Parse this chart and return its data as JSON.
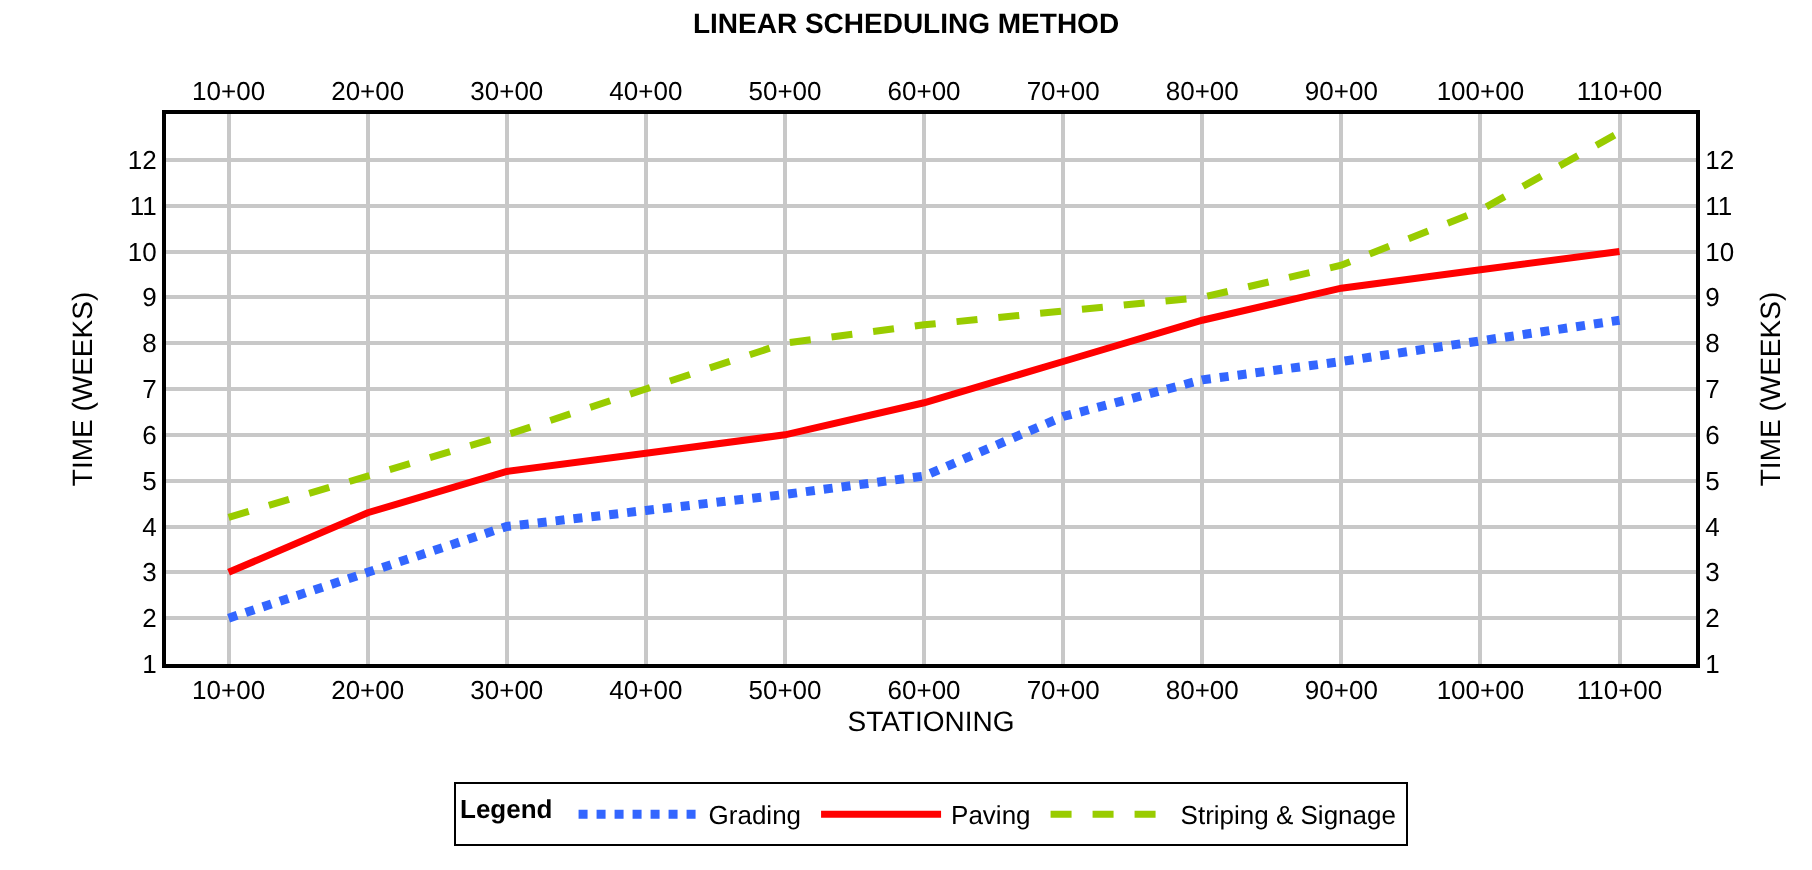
{
  "chart_data": {
    "type": "line",
    "title": "LINEAR SCHEDULING METHOD",
    "xlabel": "STATIONING",
    "ylabel": "TIME (WEEKS)",
    "y2label": "TIME (WEEKS)",
    "legend_title": "Legend",
    "legend": "bottom",
    "grid": true,
    "marker": "none",
    "categories": [
      "10+00",
      "20+00",
      "30+00",
      "40+00",
      "50+00",
      "60+00",
      "70+00",
      "80+00",
      "90+00",
      "100+00",
      "110+00"
    ],
    "ylim": [
      1,
      13
    ],
    "yticks": [
      1,
      2,
      3,
      4,
      5,
      6,
      7,
      8,
      9,
      10,
      11,
      12
    ],
    "y2lim": [
      1,
      13
    ],
    "y2ticks": [
      1,
      2,
      3,
      4,
      5,
      6,
      7,
      8,
      9,
      10,
      11,
      12
    ],
    "series": [
      {
        "name": "Grading",
        "color": "#3366ff",
        "line_style": "dotted",
        "values": [
          2,
          3,
          4,
          4.35,
          4.7,
          5.1,
          6.4,
          7.2,
          7.6,
          8.05,
          8.5
        ]
      },
      {
        "name": "Paving",
        "color": "#ff0000",
        "line_style": "solid",
        "values": [
          3,
          4.3,
          5.2,
          5.6,
          6,
          6.7,
          7.6,
          8.5,
          9.2,
          9.6,
          10
        ]
      },
      {
        "name": "Striping & Signage",
        "color": "#99cc00",
        "line_style": "dashed",
        "values": [
          4.2,
          5.1,
          6,
          7,
          8,
          8.4,
          8.7,
          9,
          9.7,
          10.9,
          12.6
        ]
      }
    ]
  }
}
